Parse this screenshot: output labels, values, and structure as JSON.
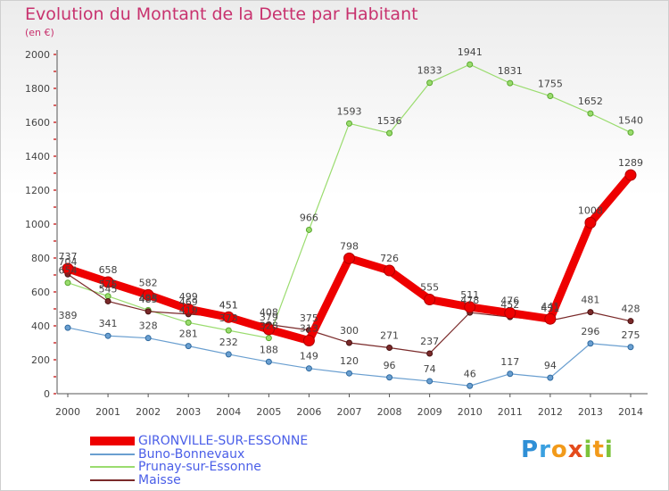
{
  "header": {
    "title": "Evolution du Montant de la Dette par Habitant",
    "unit": "(en €)"
  },
  "logo": {
    "text": "Proxiti"
  },
  "chart_data": {
    "type": "line",
    "title": "Evolution du Montant de la Dette par Habitant",
    "subtitle": "(en €)",
    "xlabel": "",
    "ylabel": "",
    "x": [
      "2000",
      "2001",
      "2002",
      "2003",
      "2004",
      "2005",
      "2006",
      "2007",
      "2008",
      "2009",
      "2010",
      "2011",
      "2012",
      "2013",
      "2014"
    ],
    "ylim": [
      0,
      2000
    ],
    "yticks": [
      0,
      200,
      400,
      600,
      800,
      1000,
      1200,
      1400,
      1600,
      1800,
      2000
    ],
    "grid": false,
    "legend_position": "bottom-left",
    "series": [
      {
        "name": "GIRONVILLE-SUR-ESSONNE",
        "color": "#ee0000",
        "values": [
          737,
          658,
          582,
          499,
          451,
          379,
          313,
          798,
          726,
          555,
          511,
          476,
          441,
          1008,
          1289
        ],
        "labels": [
          "737",
          "658",
          "582",
          "499",
          "451",
          "379",
          "313",
          "798",
          "726",
          "555",
          "511",
          "476",
          "441",
          "1008",
          "1289"
        ]
      },
      {
        "name": "Buno-Bonnevaux",
        "color": "#6a9fd0",
        "values": [
          389,
          341,
          328,
          281,
          232,
          188,
          149,
          120,
          96,
          74,
          46,
          117,
          94,
          296,
          275
        ],
        "labels": [
          "389",
          "341",
          "328",
          "281",
          "232",
          "188",
          "149",
          "120",
          "96",
          "74",
          "46",
          "117",
          "94",
          "296",
          "275"
        ]
      },
      {
        "name": "Prunay-sur-Essonne",
        "color": "#9adc6e",
        "values": [
          654,
          575,
          493,
          419,
          373,
          328,
          966,
          1593,
          1536,
          1833,
          1941,
          1831,
          1755,
          1652,
          1540
        ],
        "labels": [
          "654",
          "575",
          "493",
          "419",
          "373",
          "328",
          "966",
          "1593",
          "1536",
          "1833",
          "1941",
          "1831",
          "1755",
          "1652",
          "1540"
        ]
      },
      {
        "name": "Maisse",
        "color": "#7a2a2a",
        "values": [
          704,
          545,
          485,
          469,
          451,
          408,
          375,
          300,
          271,
          237,
          478,
          452,
          431,
          481,
          428
        ],
        "labels": [
          "704",
          "545",
          "485",
          "469",
          "451",
          "408",
          "375",
          "300",
          "271",
          "237",
          "478",
          "452",
          "431",
          "481",
          "428"
        ]
      }
    ]
  }
}
